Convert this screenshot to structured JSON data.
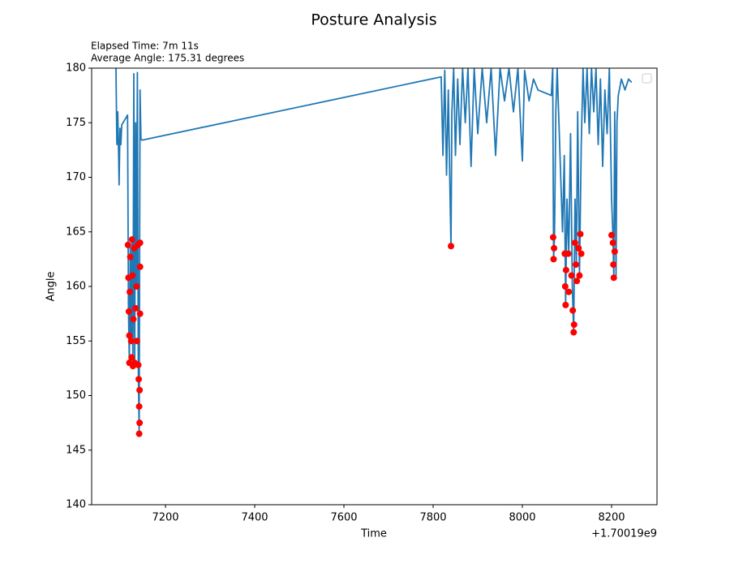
{
  "chart_data": {
    "type": "line",
    "title": "Posture Analysis",
    "annotations": [
      "Elapsed Time: 7m 11s",
      "Average Angle: 175.31 degrees"
    ],
    "x_label": "Time",
    "y_label": "Angle",
    "x_offset_label": "+1.70019e9",
    "xlim": [
      1700197034.5,
      1700198301.8
    ],
    "ylim": [
      140,
      180
    ],
    "xticks": [
      {
        "value": 1700197200,
        "label": "7200"
      },
      {
        "value": 1700197400,
        "label": "7400"
      },
      {
        "value": 1700197600,
        "label": "7600"
      },
      {
        "value": 1700197800,
        "label": "7800"
      },
      {
        "value": 1700198000,
        "label": "8000"
      },
      {
        "value": 1700198200,
        "label": "8200"
      }
    ],
    "yticks": [
      140,
      145,
      150,
      155,
      160,
      165,
      170,
      175,
      180
    ],
    "legend": "upper right",
    "series": [
      {
        "mode": "line",
        "color": "#1f77b4",
        "x": [
          1700197089,
          1700197091,
          1700197093,
          1700197095,
          1700197096,
          1700197098,
          1700197100,
          1700197102,
          1700197115,
          1700197117,
          1700197119,
          1700197121,
          1700197123,
          1700197125,
          1700197127,
          1700197129,
          1700197131,
          1700197133,
          1700197135,
          1700197137,
          1700197139,
          1700197141,
          1700197143,
          1700197145,
          1700197147,
          1700197818,
          1700197822,
          1700197826,
          1700197830,
          1700197834,
          1700197838,
          1700197840,
          1700197842,
          1700197846,
          1700197850,
          1700197855,
          1700197860,
          1700197866,
          1700197872,
          1700197878,
          1700197885,
          1700197892,
          1700197900,
          1700197910,
          1700197920,
          1700197930,
          1700197940,
          1700197950,
          1700197960,
          1700197970,
          1700197980,
          1700197990,
          1700198000,
          1700198005,
          1700198015,
          1700198025,
          1700198035,
          1700198065,
          1700198068,
          1700198070,
          1700198072,
          1700198075,
          1700198078,
          1700198082,
          1700198086,
          1700198090,
          1700198094,
          1700198097,
          1700198100,
          1700198104,
          1700198108,
          1700198112,
          1700198115,
          1700198118,
          1700198121,
          1700198124,
          1700198128,
          1700198132,
          1700198136,
          1700198140,
          1700198145,
          1700198150,
          1700198155,
          1700198160,
          1700198165,
          1700198170,
          1700198175,
          1700198180,
          1700198185,
          1700198190,
          1700198195,
          1700198200,
          1700198203,
          1700198205,
          1700198207,
          1700198210,
          1700198212,
          1700198215,
          1700198222,
          1700198230,
          1700198238,
          1700198245
        ],
        "values": [
          180,
          173,
          176,
          172,
          169.3,
          174.5,
          173,
          174.8,
          175.7,
          158,
          153,
          163.8,
          155,
          164.3,
          152.7,
          179.5,
          153,
          175,
          160,
          179.6,
          152.8,
          146.5,
          178,
          173.5,
          173.4,
          179.2,
          172,
          179.8,
          170.2,
          178,
          168,
          163.7,
          176,
          180,
          172,
          179,
          173,
          180,
          175,
          180,
          171,
          180,
          174,
          180,
          175,
          180,
          172,
          180,
          177,
          180,
          176,
          180,
          171.5,
          179.8,
          177,
          179,
          178,
          177.5,
          180,
          162.5,
          164.5,
          176,
          180,
          175,
          170,
          165,
          172,
          158.3,
          168,
          163,
          174,
          160,
          155.8,
          168,
          162,
          176,
          161,
          173,
          180,
          175,
          180,
          174,
          180,
          176,
          180,
          173,
          179,
          171,
          178,
          174,
          180,
          168,
          164.7,
          160.8,
          176,
          161,
          175,
          177.5,
          179,
          178,
          179,
          178.7
        ]
      },
      {
        "mode": "markers",
        "color": "#ff0000",
        "x": [
          1700197116,
          1700197117,
          1700197118,
          1700197119,
          1700197119,
          1700197120,
          1700197121,
          1700197123,
          1700197124,
          1700197125,
          1700197126,
          1700197127,
          1700197128,
          1700197130,
          1700197131,
          1700197133,
          1700197135,
          1700197136,
          1700197138,
          1700197139,
          1700197140,
          1700197141,
          1700197141,
          1700197142,
          1700197142,
          1700197143,
          1700197143,
          1700197143,
          1700197840,
          1700198069,
          1700198070,
          1700198071,
          1700198095,
          1700198096,
          1700198097,
          1700198098,
          1700198103,
          1700198104,
          1700198110,
          1700198113,
          1700198115,
          1700198116,
          1700198118,
          1700198120,
          1700198122,
          1700198126,
          1700198128,
          1700198130,
          1700198132,
          1700198200,
          1700198203,
          1700198204,
          1700198205,
          1700198207
        ],
        "values": [
          163.8,
          160.8,
          157.7,
          155.5,
          153,
          159.5,
          162.7,
          155,
          153.5,
          164.3,
          161,
          152.7,
          157,
          163.5,
          153,
          158,
          160,
          155,
          163.8,
          152.8,
          151.5,
          149,
          146.5,
          147.5,
          150.5,
          157.5,
          161.8,
          164,
          163.7,
          164.5,
          162.5,
          163.5,
          163,
          160,
          158.3,
          161.5,
          163,
          159.5,
          161,
          157.8,
          155.8,
          156.5,
          164,
          162,
          160.5,
          163.5,
          161,
          164.8,
          163,
          164.7,
          164,
          162,
          160.8,
          163.2
        ]
      }
    ]
  }
}
